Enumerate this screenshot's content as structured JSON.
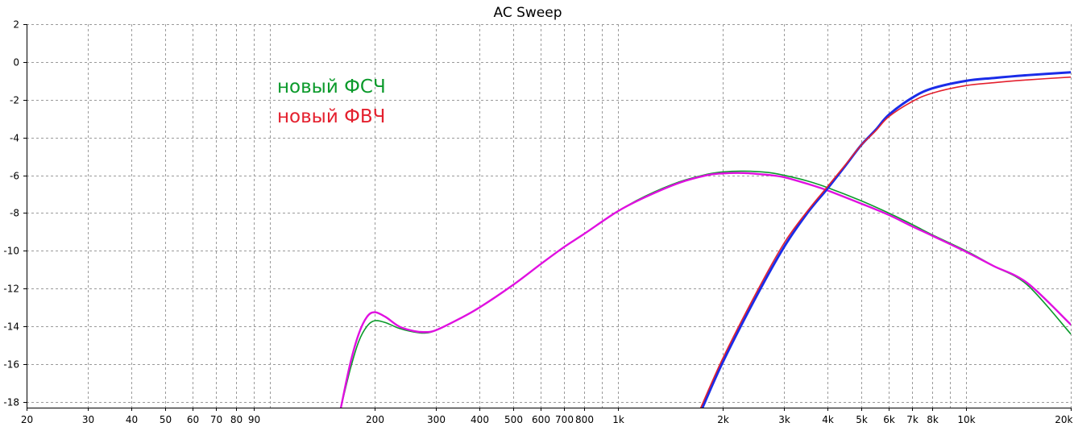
{
  "chart_data": {
    "type": "line",
    "title": "AC Sweep",
    "xscale": "log",
    "xlim": [
      20,
      20000
    ],
    "ylim": [
      -18.3,
      2.0
    ],
    "grid": true,
    "legend_position": "upper-left (inside plot)",
    "legend_entries": [
      {
        "label": "новый ФСЧ",
        "color": "#0b9a2b"
      },
      {
        "label": "новый ФВЧ",
        "color": "#e4202e"
      }
    ],
    "x_ticks": [
      {
        "value": 20,
        "label": "20"
      },
      {
        "value": 30,
        "label": "30"
      },
      {
        "value": 40,
        "label": "40"
      },
      {
        "value": 50,
        "label": "50"
      },
      {
        "value": 60,
        "label": "60"
      },
      {
        "value": 70,
        "label": "70"
      },
      {
        "value": 80,
        "label": "80"
      },
      {
        "value": 90,
        "label": "90"
      },
      {
        "value": 200,
        "label": "200"
      },
      {
        "value": 300,
        "label": "300"
      },
      {
        "value": 400,
        "label": "400"
      },
      {
        "value": 500,
        "label": "500"
      },
      {
        "value": 600,
        "label": "600"
      },
      {
        "value": 700,
        "label": "700"
      },
      {
        "value": 800,
        "label": "800"
      },
      {
        "value": 1000,
        "label": "1k"
      },
      {
        "value": 2000,
        "label": "2k"
      },
      {
        "value": 3000,
        "label": "3k"
      },
      {
        "value": 4000,
        "label": "4k"
      },
      {
        "value": 5000,
        "label": "5k"
      },
      {
        "value": 6000,
        "label": "6k"
      },
      {
        "value": 7000,
        "label": "7k"
      },
      {
        "value": 8000,
        "label": "8k"
      },
      {
        "value": 10000,
        "label": "10k"
      },
      {
        "value": 20000,
        "label": "20k"
      }
    ],
    "x_unlabeled_gridlines": [
      100,
      900,
      9000
    ],
    "y_ticks": [
      {
        "value": 2,
        "label": "2"
      },
      {
        "value": 0,
        "label": "0"
      },
      {
        "value": -2,
        "label": "-2"
      },
      {
        "value": -4,
        "label": "-4"
      },
      {
        "value": -6,
        "label": "-6"
      },
      {
        "value": -8,
        "label": "-8"
      },
      {
        "value": -10,
        "label": "-10"
      },
      {
        "value": -12,
        "label": "-12"
      },
      {
        "value": -14,
        "label": "-14"
      },
      {
        "value": -16,
        "label": "-16"
      },
      {
        "value": -18,
        "label": "-18"
      }
    ],
    "series": [
      {
        "color": "#0b9a2b",
        "width": 1.6,
        "points": [
          [
            160,
            -18.3
          ],
          [
            170,
            -16.3
          ],
          [
            180,
            -14.8
          ],
          [
            190,
            -14.0
          ],
          [
            200,
            -13.7
          ],
          [
            215,
            -13.8
          ],
          [
            235,
            -14.1
          ],
          [
            260,
            -14.3
          ],
          [
            280,
            -14.35
          ],
          [
            300,
            -14.2
          ],
          [
            350,
            -13.6
          ],
          [
            400,
            -13.0
          ],
          [
            500,
            -11.8
          ],
          [
            600,
            -10.7
          ],
          [
            700,
            -9.8
          ],
          [
            800,
            -9.1
          ],
          [
            1000,
            -7.9
          ],
          [
            1200,
            -7.1
          ],
          [
            1500,
            -6.35
          ],
          [
            1800,
            -5.95
          ],
          [
            2000,
            -5.82
          ],
          [
            2300,
            -5.78
          ],
          [
            2700,
            -5.85
          ],
          [
            3000,
            -6.0
          ],
          [
            3500,
            -6.3
          ],
          [
            4000,
            -6.65
          ],
          [
            5000,
            -7.35
          ],
          [
            6000,
            -8.0
          ],
          [
            7000,
            -8.6
          ],
          [
            8000,
            -9.15
          ],
          [
            10000,
            -10.0
          ],
          [
            12000,
            -10.8
          ],
          [
            15000,
            -11.8
          ],
          [
            20000,
            -14.4
          ]
        ]
      },
      {
        "color": "#e010e0",
        "width": 2.4,
        "points": [
          [
            160,
            -18.3
          ],
          [
            170,
            -16.0
          ],
          [
            180,
            -14.4
          ],
          [
            190,
            -13.5
          ],
          [
            200,
            -13.25
          ],
          [
            215,
            -13.5
          ],
          [
            235,
            -14.0
          ],
          [
            260,
            -14.25
          ],
          [
            280,
            -14.3
          ],
          [
            300,
            -14.2
          ],
          [
            350,
            -13.6
          ],
          [
            400,
            -13.0
          ],
          [
            500,
            -11.8
          ],
          [
            600,
            -10.7
          ],
          [
            700,
            -9.8
          ],
          [
            800,
            -9.1
          ],
          [
            1000,
            -7.9
          ],
          [
            1200,
            -7.15
          ],
          [
            1500,
            -6.4
          ],
          [
            1800,
            -6.0
          ],
          [
            2000,
            -5.9
          ],
          [
            2300,
            -5.88
          ],
          [
            2700,
            -5.98
          ],
          [
            3000,
            -6.1
          ],
          [
            3500,
            -6.45
          ],
          [
            4000,
            -6.8
          ],
          [
            5000,
            -7.5
          ],
          [
            6000,
            -8.1
          ],
          [
            7000,
            -8.7
          ],
          [
            8000,
            -9.2
          ],
          [
            10000,
            -10.05
          ],
          [
            12000,
            -10.8
          ],
          [
            15000,
            -11.7
          ],
          [
            20000,
            -13.9
          ]
        ]
      },
      {
        "color": "#1a2ce8",
        "width": 3.0,
        "points": [
          [
            1750,
            -18.3
          ],
          [
            2000,
            -15.9
          ],
          [
            2500,
            -12.4
          ],
          [
            3000,
            -9.8
          ],
          [
            3500,
            -8.0
          ],
          [
            4000,
            -6.7
          ],
          [
            4500,
            -5.5
          ],
          [
            5000,
            -4.4
          ],
          [
            5500,
            -3.6
          ],
          [
            6000,
            -2.8
          ],
          [
            7000,
            -1.9
          ],
          [
            8000,
            -1.4
          ],
          [
            10000,
            -1.0
          ],
          [
            12000,
            -0.85
          ],
          [
            15000,
            -0.7
          ],
          [
            20000,
            -0.55
          ]
        ]
      },
      {
        "color": "#e4202e",
        "width": 1.6,
        "points": [
          [
            1730,
            -18.3
          ],
          [
            2000,
            -15.7
          ],
          [
            2500,
            -12.2
          ],
          [
            3000,
            -9.6
          ],
          [
            3500,
            -7.9
          ],
          [
            4000,
            -6.6
          ],
          [
            4500,
            -5.45
          ],
          [
            5000,
            -4.4
          ],
          [
            5500,
            -3.65
          ],
          [
            6000,
            -2.9
          ],
          [
            7000,
            -2.1
          ],
          [
            8000,
            -1.65
          ],
          [
            10000,
            -1.25
          ],
          [
            12000,
            -1.1
          ],
          [
            15000,
            -0.95
          ],
          [
            20000,
            -0.8
          ]
        ]
      }
    ]
  }
}
